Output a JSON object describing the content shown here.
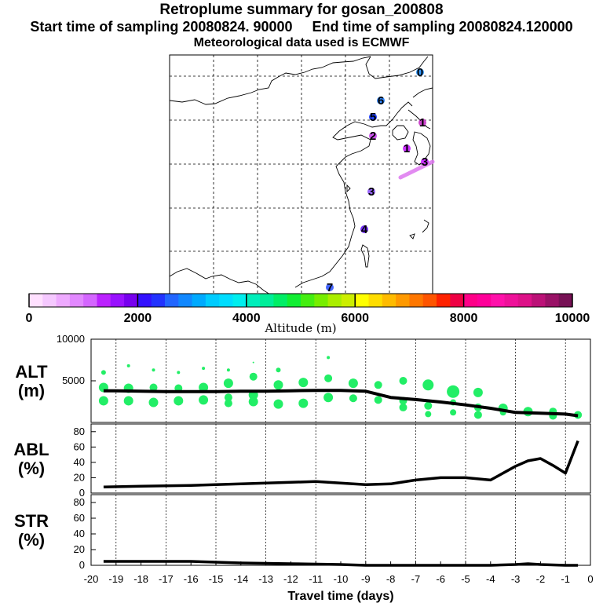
{
  "header": {
    "title": "Retroplume summary for gosan_200808",
    "sampling_line": "Start time of sampling 20080824. 90000     End time of sampling 20080824.120000",
    "met_line": "Meteorological data used is ECMWF"
  },
  "colors": {
    "plume_green": "#22ee66",
    "line": "#000000",
    "coast": "#000000",
    "grid": "#000000"
  },
  "map": {
    "markers": [
      {
        "label": "0",
        "color": "#3399ff"
      },
      {
        "label": "6",
        "color": "#3388ff"
      },
      {
        "label": "5",
        "color": "#2244ff"
      },
      {
        "label": "1",
        "color": "#cc44cc"
      },
      {
        "label": "2",
        "color": "#cc55ee"
      },
      {
        "label": "1",
        "color": "#cc33ff"
      },
      {
        "label": "3",
        "color": "#cc33ff"
      },
      {
        "label": "3",
        "color": "#9966ff"
      },
      {
        "label": "4",
        "color": "#7733ff"
      },
      {
        "label": "7",
        "color": "#4466ff"
      }
    ]
  },
  "colorbar": {
    "ticks": [
      "0",
      "2000",
      "4000",
      "6000",
      "8000",
      "10000"
    ],
    "label": "Altitude (m)",
    "colors": [
      "#ffe0ff",
      "#f5c8ff",
      "#eeaaff",
      "#e288ff",
      "#d466ff",
      "#bb22ff",
      "#9911ff",
      "#7700ee",
      "#3311ff",
      "#2233ff",
      "#2266ff",
      "#1188ff",
      "#00aaff",
      "#00ccff",
      "#00ddff",
      "#00eeee",
      "#00eebb",
      "#00ee99",
      "#00ee66",
      "#11ee33",
      "#44ee11",
      "#77ee00",
      "#aaee00",
      "#ccee00",
      "#ffff00",
      "#ffdd00",
      "#ffbb00",
      "#ff9900",
      "#ff7700",
      "#ff5500",
      "#ff2200",
      "#ee0044",
      "#ff0088",
      "#ff0099",
      "#ff11aa",
      "#ee1199",
      "#dd1188",
      "#bb1177",
      "#991166",
      "#771155"
    ]
  },
  "chart_data": [
    {
      "type": "scatter",
      "panel": "ALT",
      "ylabel": "ALT\n(m)",
      "ylabel_lines": [
        "ALT",
        "(m)"
      ],
      "ylim": [
        0,
        10000
      ],
      "yticks": [
        "10000",
        "5000"
      ],
      "xlim": [
        -20,
        0
      ],
      "median_line": {
        "x": [
          -19.5,
          -19,
          -18,
          -17,
          -16,
          -15,
          -14,
          -13,
          -12,
          -11,
          -10,
          -9.5,
          -9,
          -8,
          -7,
          -6,
          -5,
          -4,
          -3,
          -2,
          -1,
          -0.5
        ],
        "y": [
          3800,
          3800,
          3750,
          3700,
          3700,
          3700,
          3750,
          3750,
          3800,
          3850,
          3850,
          3800,
          3750,
          3000,
          2750,
          2450,
          2100,
          1700,
          1200,
          1100,
          1000,
          800
        ]
      },
      "clusters": [
        {
          "x": -19.5,
          "y": 6000,
          "r": 3
        },
        {
          "x": -19.5,
          "y": 4200,
          "r": 6
        },
        {
          "x": -19.5,
          "y": 2600,
          "r": 6
        },
        {
          "x": -18.5,
          "y": 6800,
          "r": 2
        },
        {
          "x": -18.5,
          "y": 4100,
          "r": 6
        },
        {
          "x": -18.5,
          "y": 2600,
          "r": 6
        },
        {
          "x": -17.5,
          "y": 6300,
          "r": 2
        },
        {
          "x": -17.5,
          "y": 4200,
          "r": 5
        },
        {
          "x": -17.5,
          "y": 2400,
          "r": 6
        },
        {
          "x": -16.5,
          "y": 6000,
          "r": 2
        },
        {
          "x": -16.5,
          "y": 4100,
          "r": 5
        },
        {
          "x": -16.5,
          "y": 2600,
          "r": 6
        },
        {
          "x": -15.5,
          "y": 6500,
          "r": 2
        },
        {
          "x": -15.5,
          "y": 4200,
          "r": 6
        },
        {
          "x": -15.5,
          "y": 2700,
          "r": 6
        },
        {
          "x": -14.5,
          "y": 6300,
          "r": 2
        },
        {
          "x": -14.5,
          "y": 4700,
          "r": 6
        },
        {
          "x": -14.5,
          "y": 3000,
          "r": 5
        },
        {
          "x": -14.5,
          "y": 2300,
          "r": 5
        },
        {
          "x": -13.5,
          "y": 7200,
          "r": 1
        },
        {
          "x": -13.5,
          "y": 5500,
          "r": 5
        },
        {
          "x": -13.5,
          "y": 3300,
          "r": 6
        },
        {
          "x": -13.5,
          "y": 2500,
          "r": 6
        },
        {
          "x": -12.5,
          "y": 6300,
          "r": 3
        },
        {
          "x": -12.5,
          "y": 4500,
          "r": 6
        },
        {
          "x": -12.5,
          "y": 2200,
          "r": 6
        },
        {
          "x": -11.5,
          "y": 4800,
          "r": 6
        },
        {
          "x": -11.5,
          "y": 2300,
          "r": 6
        },
        {
          "x": -10.5,
          "y": 7800,
          "r": 2
        },
        {
          "x": -10.5,
          "y": 5300,
          "r": 5
        },
        {
          "x": -10.5,
          "y": 3000,
          "r": 6
        },
        {
          "x": -9.5,
          "y": 4700,
          "r": 6
        },
        {
          "x": -9.5,
          "y": 2900,
          "r": 5
        },
        {
          "x": -8.5,
          "y": 4500,
          "r": 5
        },
        {
          "x": -8.5,
          "y": 2700,
          "r": 5
        },
        {
          "x": -7.5,
          "y": 5000,
          "r": 5
        },
        {
          "x": -7.5,
          "y": 2600,
          "r": 5
        },
        {
          "x": -7.5,
          "y": 1800,
          "r": 5
        },
        {
          "x": -6.5,
          "y": 4500,
          "r": 7
        },
        {
          "x": -6.5,
          "y": 2000,
          "r": 5
        },
        {
          "x": -6.5,
          "y": 1000,
          "r": 4
        },
        {
          "x": -5.5,
          "y": 3700,
          "r": 8
        },
        {
          "x": -5.5,
          "y": 2400,
          "r": 4
        },
        {
          "x": -5.5,
          "y": 1200,
          "r": 4
        },
        {
          "x": -4.5,
          "y": 3600,
          "r": 6
        },
        {
          "x": -4.5,
          "y": 1800,
          "r": 5
        },
        {
          "x": -4.5,
          "y": 900,
          "r": 5
        },
        {
          "x": -3.5,
          "y": 1700,
          "r": 6
        },
        {
          "x": -3.5,
          "y": 1200,
          "r": 4
        },
        {
          "x": -2.5,
          "y": 1300,
          "r": 6
        },
        {
          "x": -1.5,
          "y": 1300,
          "r": 5
        },
        {
          "x": -1.5,
          "y": 800,
          "r": 5
        },
        {
          "x": -0.5,
          "y": 900,
          "r": 5
        }
      ]
    },
    {
      "type": "line",
      "panel": "ABL",
      "ylabel_lines": [
        "ABL",
        "(%)"
      ],
      "ylim": [
        0,
        90
      ],
      "yticks": [
        "80",
        "60",
        "40",
        "20",
        "0"
      ],
      "x": [
        -19.5,
        -18,
        -16,
        -14,
        -12,
        -11,
        -10,
        -9,
        -8,
        -7,
        -6,
        -5,
        -4,
        -3,
        -2.5,
        -2,
        -1.5,
        -1,
        -0.5
      ],
      "y": [
        8,
        9,
        10,
        12,
        14,
        15,
        13,
        11,
        12,
        17,
        20,
        20,
        17,
        35,
        42,
        45,
        36,
        26,
        68
      ]
    },
    {
      "type": "line",
      "panel": "STR",
      "ylabel_lines": [
        "STR",
        "(%)"
      ],
      "ylim": [
        0,
        90
      ],
      "yticks": [
        "80",
        "60",
        "40",
        "20",
        "0"
      ],
      "x": [
        -19.5,
        -18,
        -16,
        -15,
        -14,
        -12,
        -10,
        -9,
        -8,
        -6,
        -4,
        -3,
        -2.5,
        -2,
        -1,
        -0.5
      ],
      "y": [
        5,
        5,
        5,
        4,
        3,
        2,
        1,
        0,
        0,
        0,
        0,
        1,
        2,
        1,
        0,
        0
      ]
    },
    {
      "type": "axis",
      "panel": "shared-x",
      "xlabel": "Travel time (days)",
      "xticks": [
        "-20",
        "-19",
        "-18",
        "-17",
        "-16",
        "-15",
        "-14",
        "-13",
        "-12",
        "-11",
        "-10",
        "-9",
        "-8",
        "-7",
        "-6",
        "-5",
        "-4",
        "-3",
        "-2",
        "-1",
        "0"
      ],
      "xlim": [
        -20,
        0
      ]
    }
  ]
}
